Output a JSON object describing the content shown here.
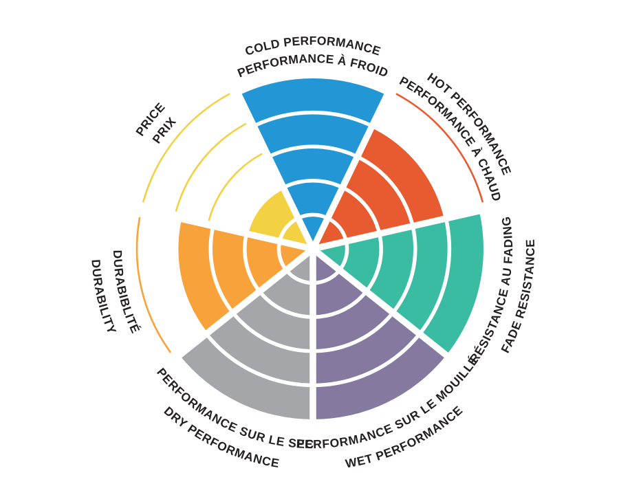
{
  "figure": {
    "background": "#FFFFFF",
    "text_color": "#231F20"
  },
  "chart_data": {
    "type": "pie",
    "subtype": "polar-wedge-rating-wheel",
    "title": "",
    "rings": 5,
    "value_range": [
      0,
      5
    ],
    "grid": "white ring dividers, white radial dividers",
    "legend_position": "none",
    "unfilled_rings_shown_as": "thin colored outline arcs",
    "sectors": [
      {
        "id": "cold-performance",
        "label_en": "COLD PERFORMANCE",
        "label_fr": "PERFORMANCE À FROID",
        "value": 5,
        "color": "#2396D5"
      },
      {
        "id": "hot-performance",
        "label_en": "HOT PERFORMANCE",
        "label_fr": "PERFORMANCE À CHAUD",
        "value": 4,
        "color": "#E85A2F"
      },
      {
        "id": "fade-resistance",
        "label_en": "FADE RESISTANCE",
        "label_fr": "RÉSISTANCE AU FADING",
        "value": 5,
        "color": "#3ABCA2"
      },
      {
        "id": "wet-performance",
        "label_en": "WET PERFORMANCE",
        "label_fr": "PERFORMANCE SUR LE MOUILLÉ",
        "value": 5,
        "color": "#85799F"
      },
      {
        "id": "dry-performance",
        "label_en": "DRY PERFORMANCE",
        "label_fr": "PERFORMANCE SUR LE SEC",
        "value": 5,
        "color": "#A5A6A9"
      },
      {
        "id": "durability",
        "label_en": "DURABILITY",
        "label_fr": "DURABIBLITÉ",
        "value": 4,
        "color": "#F8A23C"
      },
      {
        "id": "price",
        "label_en": "PRICE",
        "label_fr": "PRIX",
        "value": 2,
        "color": "#F2D143"
      }
    ]
  }
}
